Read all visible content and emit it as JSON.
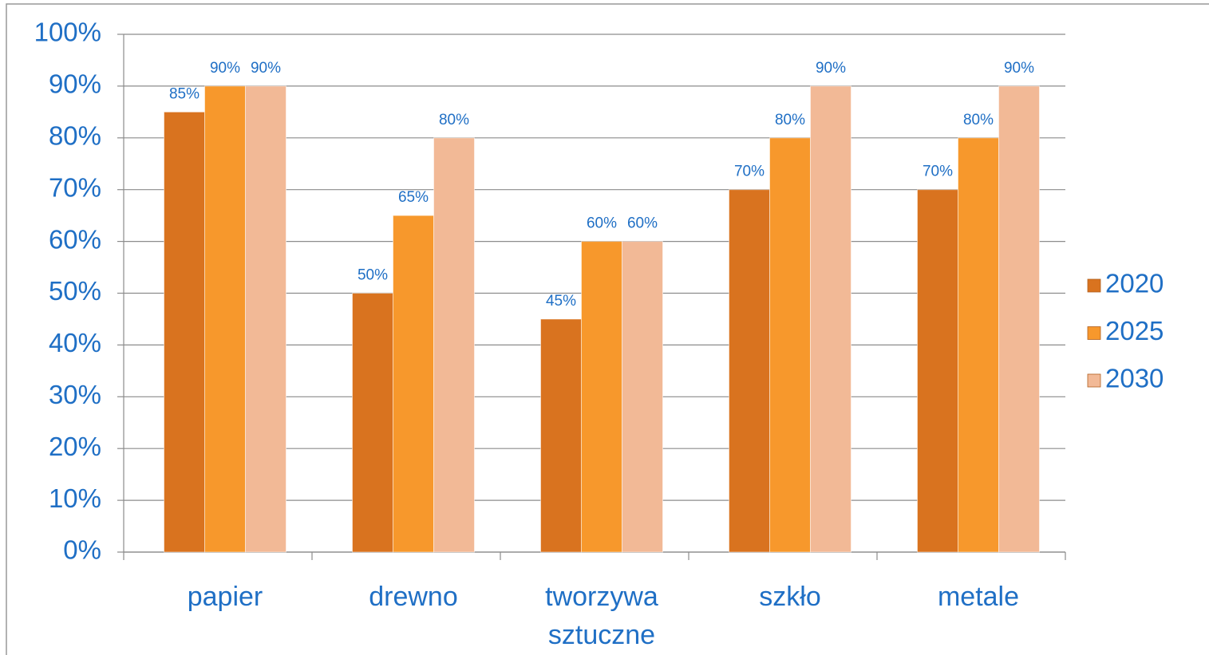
{
  "chart_data": {
    "type": "bar",
    "categories": [
      "papier",
      "drewno",
      "tworzywa sztuczne",
      "szkło",
      "metale"
    ],
    "series": [
      {
        "name": "2020",
        "color": "#d9731f",
        "values": [
          85,
          50,
          45,
          70,
          70
        ],
        "value_labels": [
          "85%",
          "50%",
          "45%",
          "70%",
          "70%"
        ]
      },
      {
        "name": "2025",
        "color": "#f7982c",
        "values": [
          90,
          65,
          60,
          80,
          80
        ],
        "value_labels": [
          "90%",
          "65%",
          "60%",
          "80%",
          "80%"
        ]
      },
      {
        "name": "2030",
        "color": "#f2b996",
        "values": [
          90,
          80,
          60,
          90,
          90
        ],
        "value_labels": [
          "90%",
          "80%",
          "60%",
          "90%",
          "90%"
        ]
      }
    ],
    "ylim": [
      0,
      100
    ],
    "yticks": [
      {
        "value": 0,
        "label": "0%"
      },
      {
        "value": 10,
        "label": "10%"
      },
      {
        "value": 20,
        "label": "20%"
      },
      {
        "value": 30,
        "label": "30%"
      },
      {
        "value": 40,
        "label": "40%"
      },
      {
        "value": 50,
        "label": "50%"
      },
      {
        "value": 60,
        "label": "60%"
      },
      {
        "value": 70,
        "label": "70%"
      },
      {
        "value": 80,
        "label": "80%"
      },
      {
        "value": 90,
        "label": "90%"
      },
      {
        "value": 100,
        "label": "100%"
      }
    ],
    "grid": true,
    "legend": "right"
  }
}
